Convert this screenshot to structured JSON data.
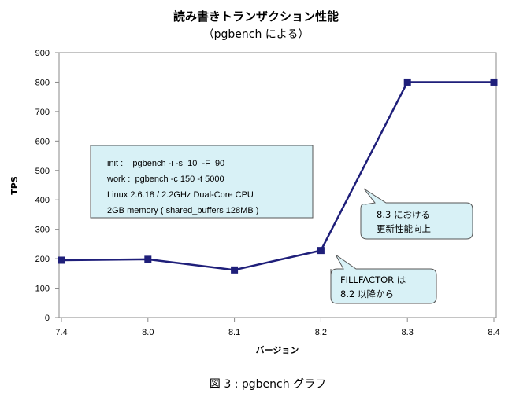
{
  "chart_data": {
    "type": "line",
    "title": "読み書きトランザクション性能",
    "subtitle": "（pgbench による）",
    "xlabel": "バージョン",
    "ylabel": "TPS",
    "categories": [
      "7.4",
      "8.0",
      "8.1",
      "8.2",
      "8.3",
      "8.4"
    ],
    "series": [
      {
        "values": [
          195,
          198,
          162,
          228,
          800,
          800
        ]
      }
    ],
    "ylim": [
      0,
      900
    ],
    "yticks": [
      "0",
      "100",
      "200",
      "300",
      "400",
      "500",
      "600",
      "700",
      "800",
      "900"
    ],
    "grid": false,
    "legend": "none",
    "colors": {
      "line": "#1f1f7a",
      "marker": "#1f1f7a",
      "note_fill": "#d8f1f6",
      "callout_fill": "#d8f1f6"
    },
    "annotations": {
      "info_box": [
        "init :    pgbench -i -s  10  -F  90",
        "work :  pgbench -c 150 -t 5000",
        "Linux 2.6.18 / 2.2GHz Dual-Core CPU",
        "2GB memory ( shared_buffers 128MB )"
      ],
      "callout_83": [
        "8.3 における",
        "更新性能向上"
      ],
      "callout_fillfactor": [
        "FILLFACTOR は",
        "8.2 以降から"
      ]
    }
  },
  "caption": "図 3 : pgbench グラフ"
}
